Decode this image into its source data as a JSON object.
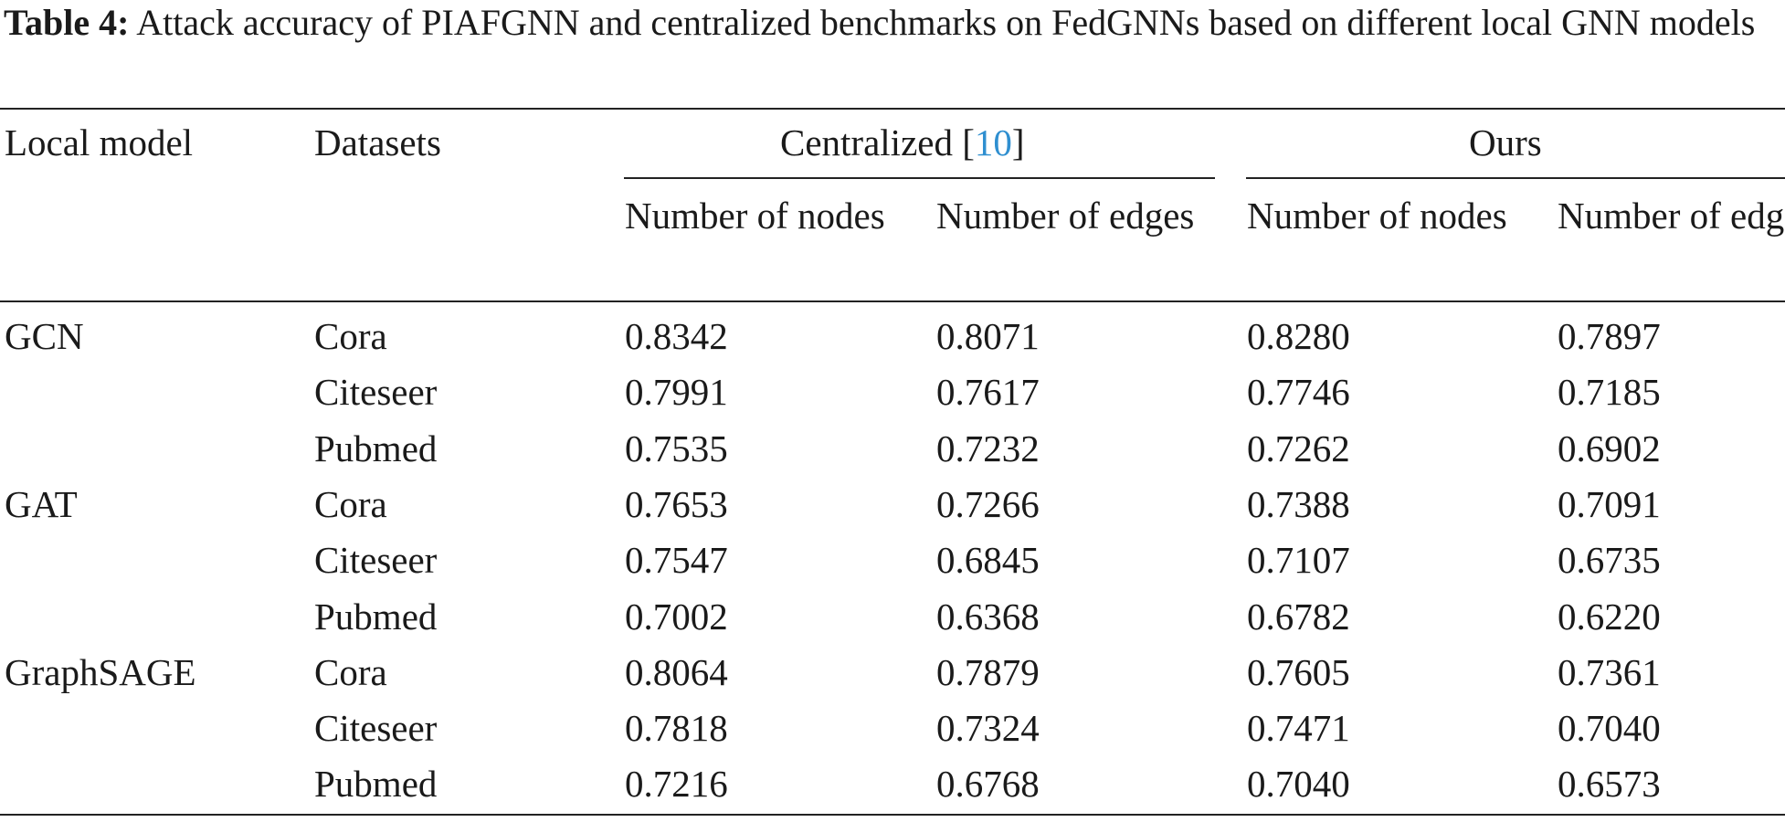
{
  "caption": {
    "label": "Table 4:",
    "text": " Attack accuracy of PIAFGNN and centralized benchmarks on FedGNNs based on different local GNN models"
  },
  "header": {
    "local_model": "Local model",
    "datasets": "Datasets",
    "group_centralized": "Centralized [",
    "group_centralized_ref": "10",
    "group_centralized_close": "]",
    "group_ours": "Ours",
    "sub": [
      "Number of nodes",
      "Number of edges",
      "Number of nodes",
      "Number of edges"
    ]
  },
  "rows": [
    {
      "model": "GCN",
      "dataset": "Cora",
      "values": [
        "0.8342",
        "0.8071",
        "0.8280",
        "0.7897"
      ]
    },
    {
      "model": "",
      "dataset": "Citeseer",
      "values": [
        "0.7991",
        "0.7617",
        "0.7746",
        "0.7185"
      ]
    },
    {
      "model": "",
      "dataset": "Pubmed",
      "values": [
        "0.7535",
        "0.7232",
        "0.7262",
        "0.6902"
      ]
    },
    {
      "model": "GAT",
      "dataset": "Cora",
      "values": [
        "0.7653",
        "0.7266",
        "0.7388",
        "0.7091"
      ]
    },
    {
      "model": "",
      "dataset": "Citeseer",
      "values": [
        "0.7547",
        "0.6845",
        "0.7107",
        "0.6735"
      ]
    },
    {
      "model": "",
      "dataset": "Pubmed",
      "values": [
        "0.7002",
        "0.6368",
        "0.6782",
        "0.6220"
      ]
    },
    {
      "model": "GraphSAGE",
      "dataset": "Cora",
      "values": [
        "0.8064",
        "0.7879",
        "0.7605",
        "0.7361"
      ]
    },
    {
      "model": "",
      "dataset": "Citeseer",
      "values": [
        "0.7818",
        "0.7324",
        "0.7471",
        "0.7040"
      ]
    },
    {
      "model": "",
      "dataset": "Pubmed",
      "values": [
        "0.7216",
        "0.6768",
        "0.7040",
        "0.6573"
      ]
    }
  ]
}
